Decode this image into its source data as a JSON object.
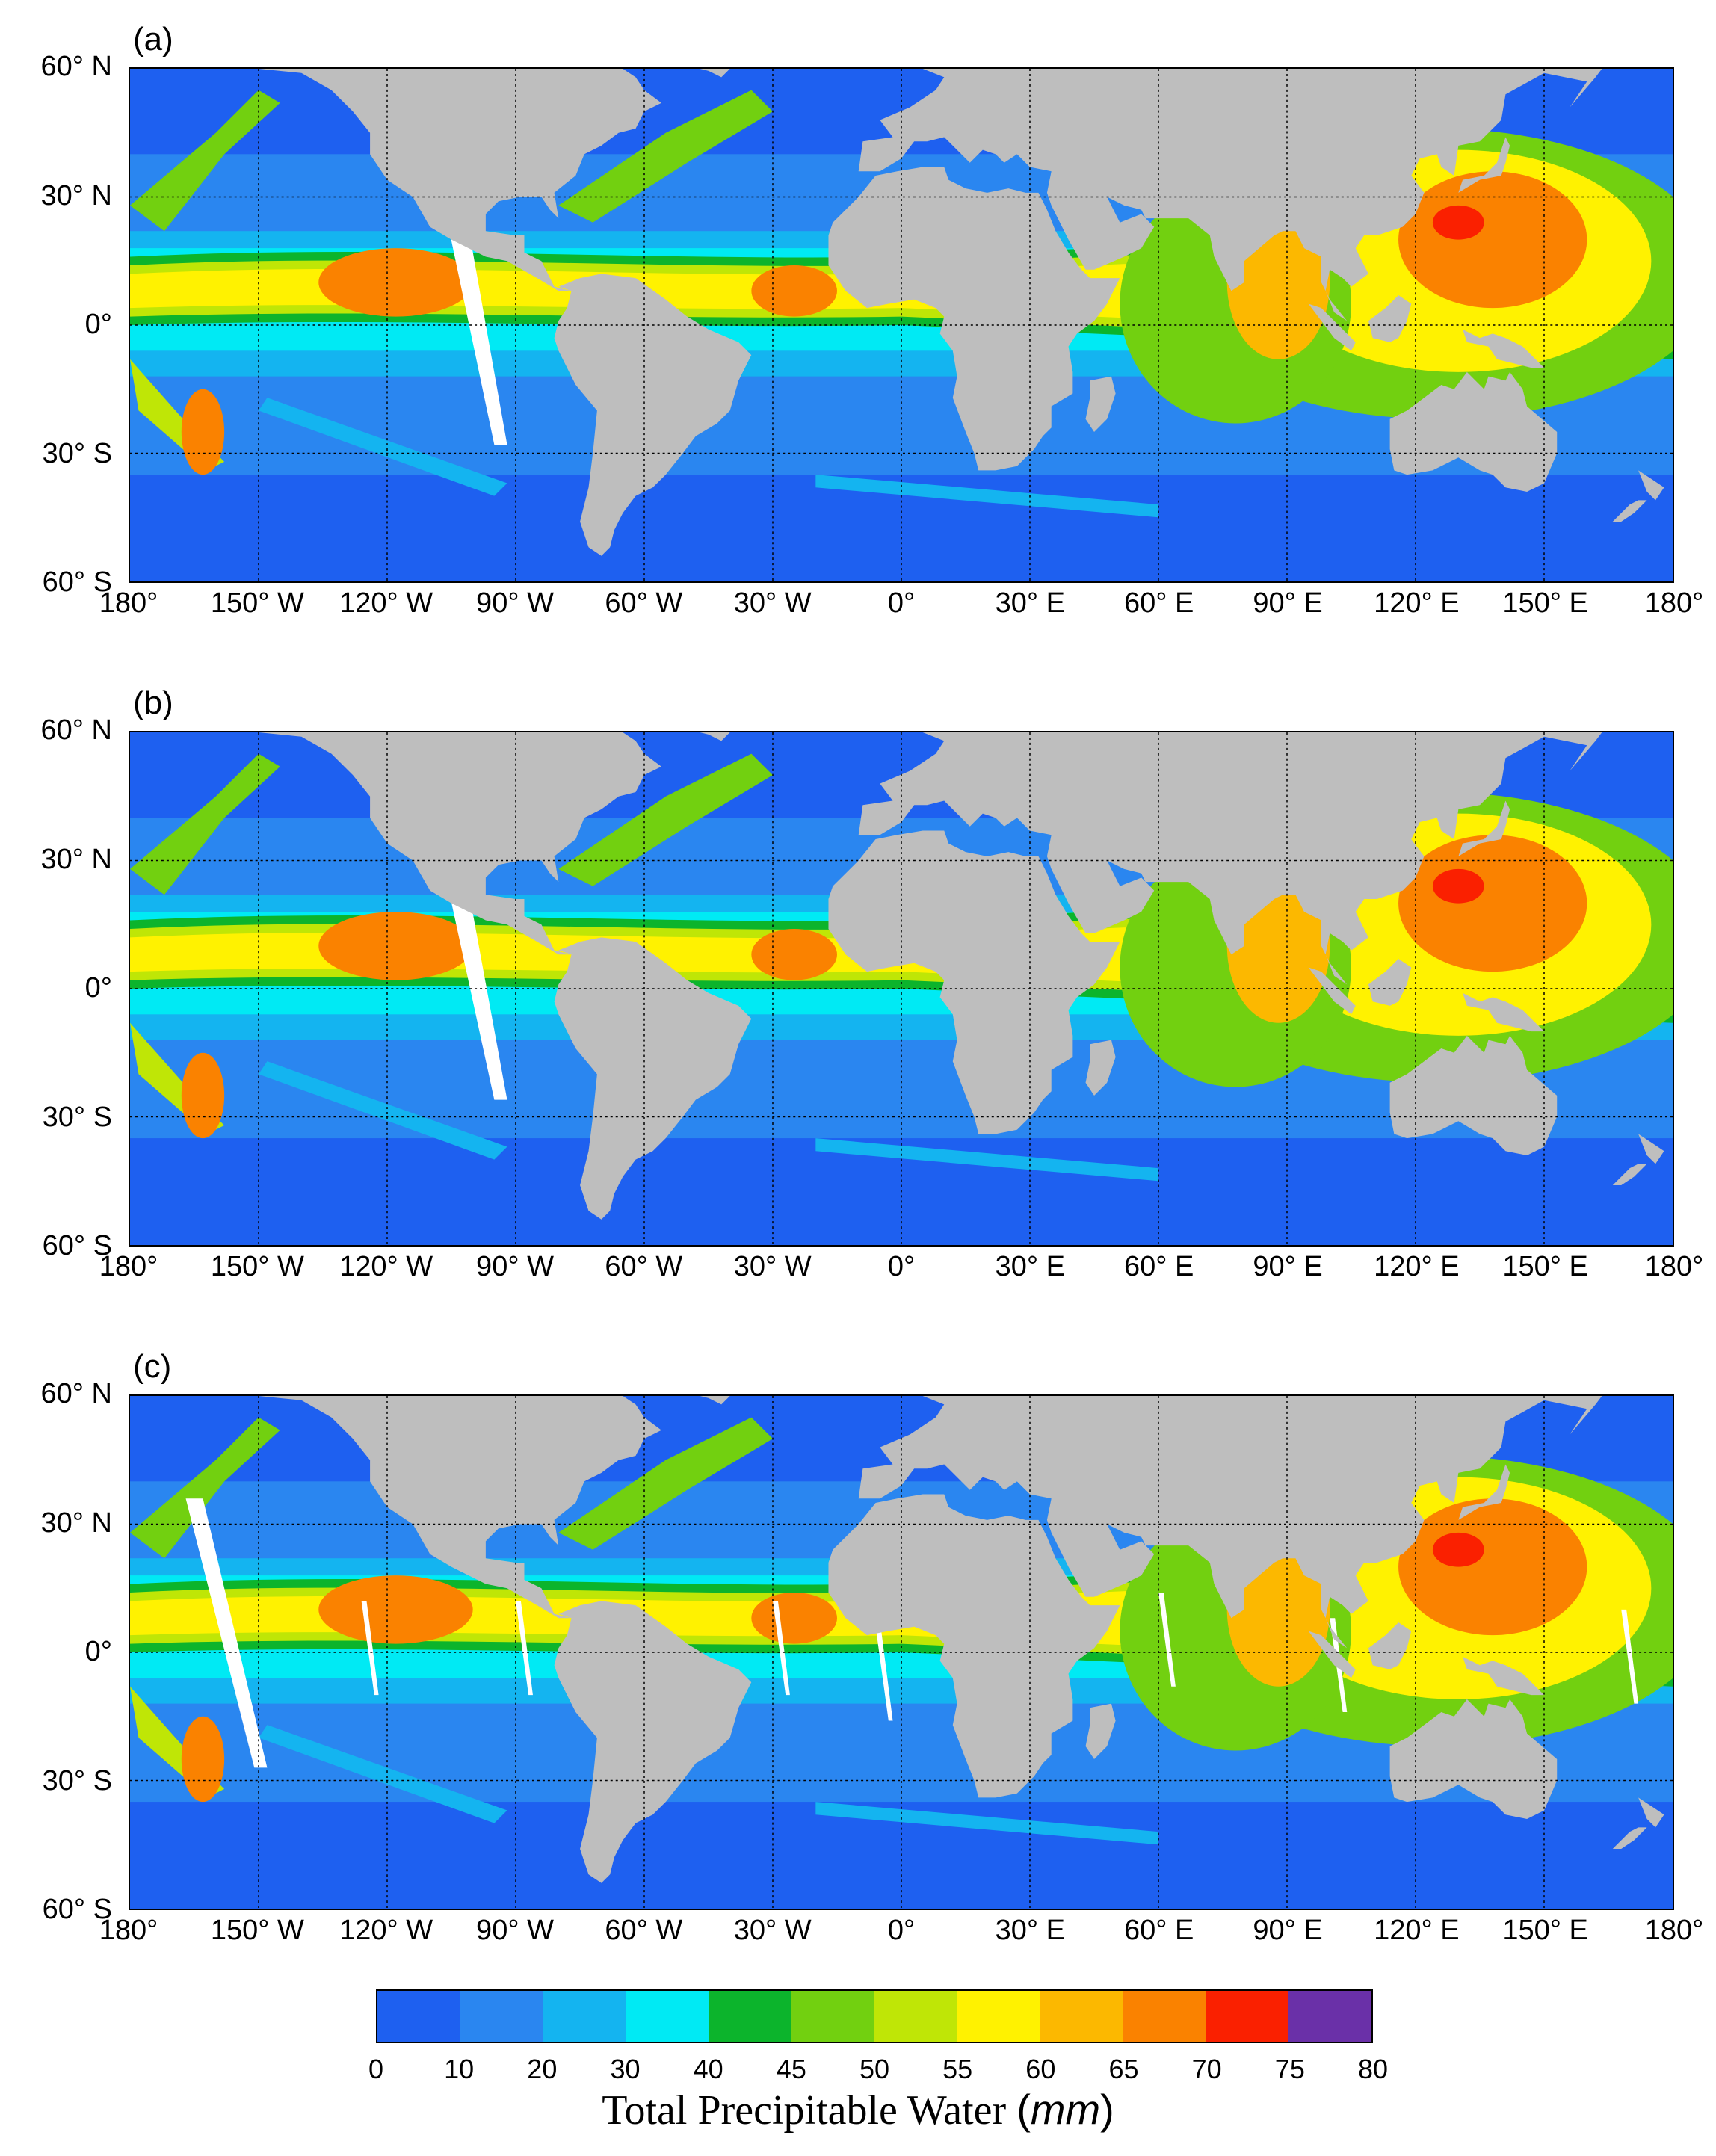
{
  "panels": [
    {
      "label": "(a)",
      "id": "a"
    },
    {
      "label": "(b)",
      "id": "b"
    },
    {
      "label": "(c)",
      "id": "c"
    }
  ],
  "lat_labels": [
    "60° N",
    "30° N",
    "0°",
    "30° S",
    "60° S"
  ],
  "lon_labels": [
    "180°",
    "150° W",
    "120° W",
    "90° W",
    "60° W",
    "30° W",
    "0°",
    "30° E",
    "60° E",
    "90° E",
    "120° E",
    "150° E",
    "180°"
  ],
  "colorbar": {
    "ticks": [
      "0",
      "10",
      "20",
      "30",
      "40",
      "45",
      "50",
      "55",
      "60",
      "65",
      "70",
      "75",
      "80"
    ],
    "colors": [
      "#1e60f0",
      "#2a86f0",
      "#14b4f0",
      "#00eaf4",
      "#0cb42c",
      "#72d010",
      "#bfe606",
      "#fff200",
      "#fcb800",
      "#fa8200",
      "#fa2000",
      "#6a30a8"
    ],
    "title": "Total Precipitable Water",
    "unit": "mm"
  },
  "land_color": "#bebebe"
}
